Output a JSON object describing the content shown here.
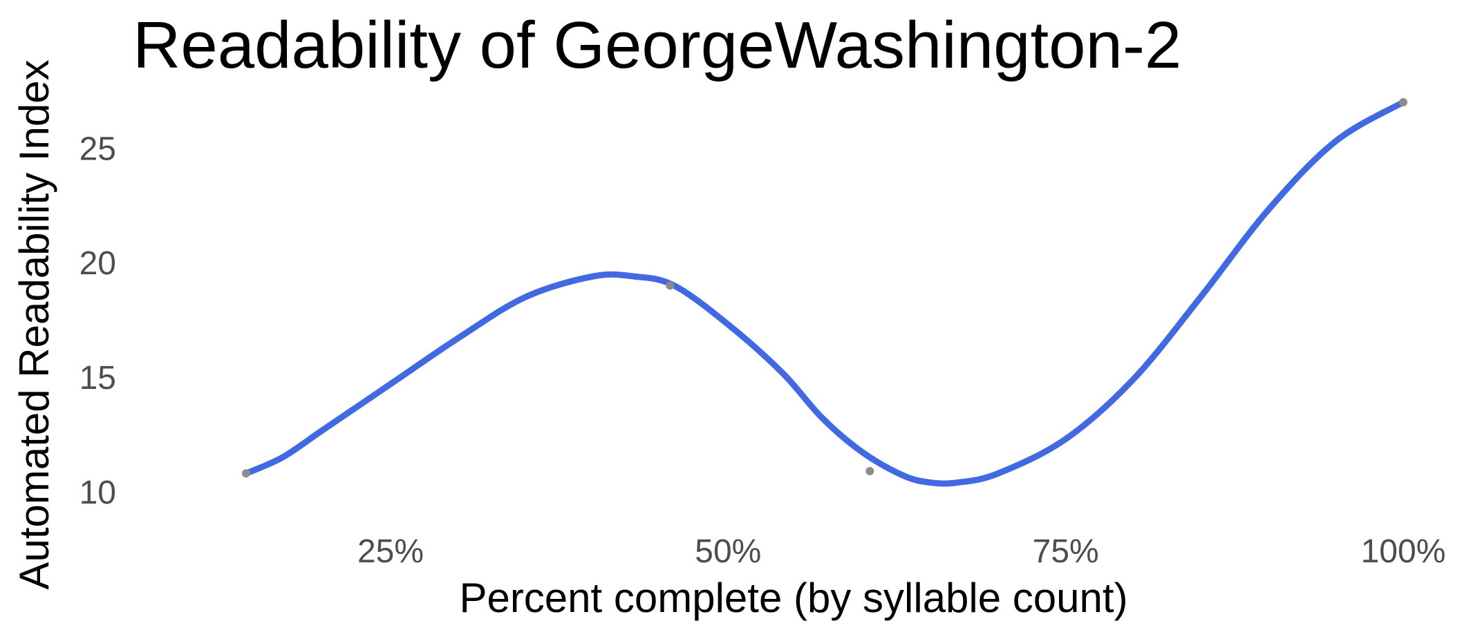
{
  "chart_data": {
    "type": "line",
    "title": "Readability of GeorgeWashington-2",
    "xlabel": "Percent complete (by syllable count)",
    "ylabel": "Automated Readability Index",
    "x_tick_labels": [
      "25%",
      "50%",
      "75%",
      "100%"
    ],
    "x_ticks": [
      0.25,
      0.5,
      0.75,
      1.0
    ],
    "y_ticks": [
      10,
      15,
      20,
      25
    ],
    "y_tick_labels": [
      "10",
      "15",
      "20",
      "25"
    ],
    "xlim": [
      0.1,
      1.0
    ],
    "ylim": [
      9.0,
      27.0
    ],
    "grid": false,
    "series": [
      {
        "points": [
          {
            "x": 0.143,
            "y": 10.8
          },
          {
            "x": 0.17,
            "y": 11.5
          },
          {
            "x": 0.2,
            "y": 12.7
          },
          {
            "x": 0.25,
            "y": 14.7
          },
          {
            "x": 0.3,
            "y": 16.7
          },
          {
            "x": 0.35,
            "y": 18.5
          },
          {
            "x": 0.4,
            "y": 19.4
          },
          {
            "x": 0.43,
            "y": 19.4
          },
          {
            "x": 0.46,
            "y": 19.0
          },
          {
            "x": 0.5,
            "y": 17.3
          },
          {
            "x": 0.54,
            "y": 15.2
          },
          {
            "x": 0.57,
            "y": 13.2
          },
          {
            "x": 0.6,
            "y": 11.7
          },
          {
            "x": 0.63,
            "y": 10.7
          },
          {
            "x": 0.65,
            "y": 10.4
          },
          {
            "x": 0.67,
            "y": 10.4
          },
          {
            "x": 0.7,
            "y": 10.8
          },
          {
            "x": 0.75,
            "y": 12.3
          },
          {
            "x": 0.8,
            "y": 14.9
          },
          {
            "x": 0.85,
            "y": 18.5
          },
          {
            "x": 0.9,
            "y": 22.3
          },
          {
            "x": 0.95,
            "y": 25.3
          },
          {
            "x": 1.0,
            "y": 27.0
          }
        ],
        "markers": [
          {
            "x": 0.143,
            "y": 10.8
          },
          {
            "x": 0.457,
            "y": 19.0
          },
          {
            "x": 0.605,
            "y": 10.9
          },
          {
            "x": 1.0,
            "y": 27.0
          }
        ]
      }
    ],
    "line_color": "#4169e1",
    "marker_color": "#8c8c8c"
  }
}
